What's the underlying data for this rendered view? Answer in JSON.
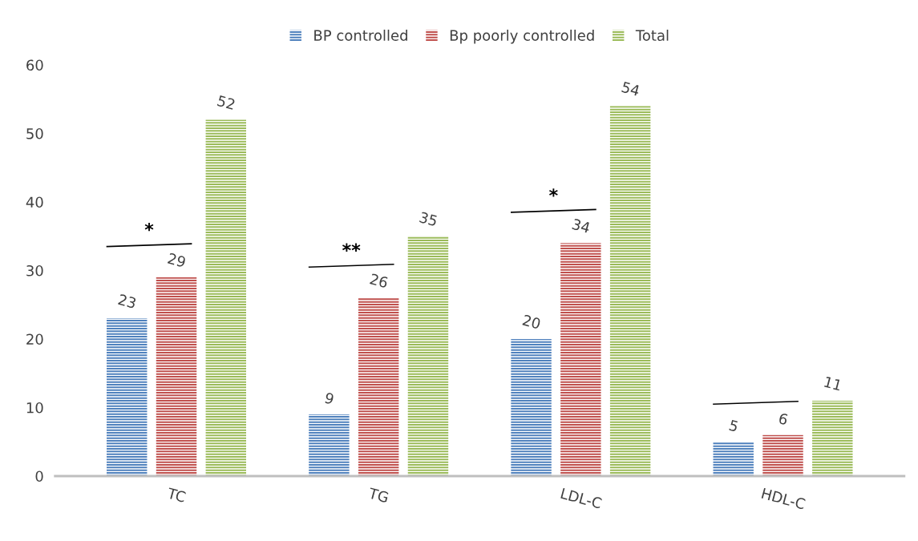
{
  "chart_data": {
    "type": "bar",
    "categories": [
      "TC",
      "TG",
      "LDL-C",
      "HDL-C"
    ],
    "series": [
      {
        "name": "BP controlled",
        "color": "#4f81bd",
        "values": [
          23,
          9,
          20,
          5
        ]
      },
      {
        "name": "Bp poorly controlled",
        "color": "#c0504d",
        "values": [
          29,
          26,
          34,
          6
        ]
      },
      {
        "name": "Total",
        "color": "#9bbb59",
        "values": [
          52,
          35,
          54,
          11
        ]
      }
    ],
    "ylim": [
      0,
      60
    ],
    "yticks": [
      0,
      10,
      20,
      30,
      40,
      50,
      60
    ],
    "data_labels": true,
    "legend": "top",
    "grid": false,
    "annotations": [
      "*",
      "**",
      "*"
    ]
  }
}
